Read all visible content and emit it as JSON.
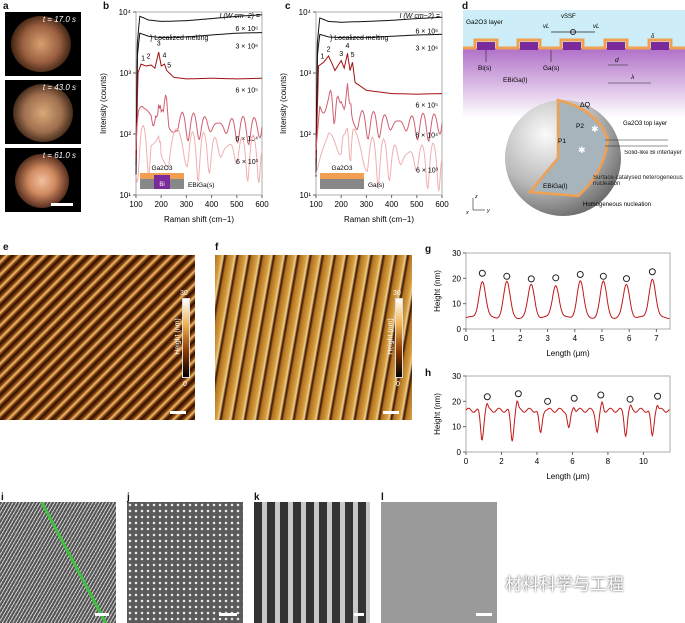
{
  "panels": {
    "a": "a",
    "b": "b",
    "c": "c",
    "d": "d",
    "e": "e",
    "f": "f",
    "g": "g",
    "h": "h",
    "i": "i",
    "j": "j",
    "k": "k",
    "l": "l"
  },
  "panel_a": {
    "times": [
      "t = 17.0 s",
      "t = 43.0 s",
      "t = 61.0 s"
    ]
  },
  "panel_d": {
    "ga2o3_layer": "Ga2O3 layer",
    "v_ssf": "vSSF",
    "v_l_left": "vL",
    "v_l_right": "vL",
    "delta": "δ",
    "bi_s": "Bi(s)",
    "ga_s": "Ga(s)",
    "d": "d",
    "lambda": "λ",
    "ebiga_l": "EBiGa(l)",
    "delta_q": "ΔQ",
    "p1": "P1",
    "p2": "P2",
    "top_layer": "Ga2O3 top layer",
    "interlayer": "Solid-like Bi interlayer",
    "surface_nucleation": "Surface-catalysed heterogeneous nucleation",
    "homogeneous": "Homogeneous nucleation",
    "ebiga_l2": "EBiGa(l)",
    "axis_z": "z",
    "axis_y": "y",
    "axis_x": "x"
  },
  "panel_e": {
    "cbar_max": "30",
    "cbar_min": "0",
    "cbar_label": "Height (nm)"
  },
  "panel_f": {
    "cbar_max": "30",
    "cbar_min": "0",
    "cbar_label": "Height (nm)"
  },
  "watermark": "材料科学与工程",
  "colors": {
    "black_series": "#111111",
    "dark_red": "#a01010",
    "mid_red": "#d05060",
    "light_red": "#eeaaaa",
    "orange": "#f0a050",
    "purple": "#7a2a9a"
  },
  "chart_data": [
    {
      "id": "b",
      "type": "line",
      "xlabel": "Raman shift (cm−1)",
      "ylabel": "Intensity (counts)",
      "xlim": [
        100,
        600
      ],
      "ylim": [
        10,
        10000
      ],
      "yscale": "log",
      "xticks": [
        "100",
        "200",
        "300",
        "400",
        "500",
        "600"
      ],
      "yticks": [
        "10¹",
        "10²",
        "10³",
        "10⁴"
      ],
      "legend_title": "I (W cm−2) =",
      "annotation": "Localized melting",
      "peak_labels": [
        "1",
        "2",
        "3",
        "4",
        "5"
      ],
      "inset": {
        "top": "Ga2O3",
        "middle": "Bi",
        "bottom": "EBiGa(s)"
      },
      "series": [
        {
          "name": "6 × 10⁶",
          "points": [
            [
              100,
              30
            ],
            [
              105,
              3000
            ],
            [
              115,
              8500
            ],
            [
              150,
              7400
            ],
            [
              200,
              7000
            ],
            [
              300,
              7200
            ],
            [
              400,
              7800
            ],
            [
              500,
              8500
            ],
            [
              600,
              9000
            ]
          ]
        },
        {
          "name": "3 × 10⁶",
          "points": [
            [
              100,
              20
            ],
            [
              106,
              2000
            ],
            [
              115,
              4500
            ],
            [
              150,
              4000
            ],
            [
              200,
              3800
            ],
            [
              300,
              3900
            ],
            [
              400,
              4200
            ],
            [
              500,
              4500
            ],
            [
              600,
              4600
            ]
          ]
        },
        {
          "name": "6 × 10⁵",
          "points": [
            [
              100,
              40
            ],
            [
              108,
              1000
            ],
            [
              120,
              1400
            ],
            [
              140,
              1300
            ],
            [
              160,
              1350
            ],
            [
              175,
              1200
            ],
            [
              190,
              2200
            ],
            [
              200,
              1300
            ],
            [
              213,
              1400
            ],
            [
              222,
              1100
            ],
            [
              232,
              1000
            ],
            [
              250,
              850
            ],
            [
              300,
              800
            ],
            [
              400,
              820
            ],
            [
              500,
              800
            ],
            [
              600,
              820
            ]
          ]
        },
        {
          "name": "6 × 10⁴",
          "points": [
            [
              100,
              60
            ],
            [
              110,
              220
            ],
            [
              130,
              280
            ],
            [
              160,
              270
            ],
            [
              178,
              250
            ],
            [
              190,
              500
            ],
            [
              200,
              260
            ],
            [
              213,
              330
            ],
            [
              230,
              250
            ],
            [
              260,
              170
            ],
            [
              300,
              150
            ],
            [
              400,
              140
            ],
            [
              500,
              130
            ],
            [
              600,
              130
            ]
          ]
        },
        {
          "name": "6 × 10³",
          "points": [
            [
              100,
              40
            ],
            [
              120,
              80
            ],
            [
              160,
              75
            ],
            [
              190,
              110
            ],
            [
              200,
              70
            ],
            [
              230,
              80
            ],
            [
              300,
              65
            ],
            [
              400,
              60
            ],
            [
              500,
              55
            ],
            [
              600,
              55
            ]
          ]
        }
      ]
    },
    {
      "id": "c",
      "type": "line",
      "xlabel": "Raman shift (cm−1)",
      "ylabel": "Intensity (counts)",
      "xlim": [
        100,
        600
      ],
      "ylim": [
        10,
        10000
      ],
      "yscale": "log",
      "xticks": [
        "100",
        "200",
        "300",
        "400",
        "500",
        "600"
      ],
      "yticks": [
        "10¹",
        "10²",
        "10³",
        "10⁴"
      ],
      "legend_title": "I (W cm−2) =",
      "annotation": "Localized melting",
      "peak_labels": [
        "1",
        "2",
        "3",
        "4",
        "5"
      ],
      "inset": {
        "top": "Ga2O3",
        "bottom": "Ga(s)"
      },
      "series": [
        {
          "name": "6 × 10⁶",
          "points": [
            [
              100,
              30
            ],
            [
              105,
              3000
            ],
            [
              115,
              8000
            ],
            [
              150,
              7000
            ],
            [
              200,
              6800
            ],
            [
              300,
              7000
            ],
            [
              400,
              7300
            ],
            [
              500,
              7800
            ],
            [
              600,
              8200
            ]
          ]
        },
        {
          "name": "3 × 10⁶",
          "points": [
            [
              100,
              20
            ],
            [
              106,
              2000
            ],
            [
              115,
              4300
            ],
            [
              150,
              3900
            ],
            [
              200,
              3800
            ],
            [
              300,
              3800
            ],
            [
              400,
              4000
            ],
            [
              500,
              4200
            ],
            [
              600,
              4300
            ]
          ]
        },
        {
          "name": "6 × 10⁵",
          "points": [
            [
              100,
              40
            ],
            [
              110,
              1300
            ],
            [
              130,
              1500
            ],
            [
              150,
              1900
            ],
            [
              175,
              1100
            ],
            [
              200,
              1600
            ],
            [
              212,
              1200
            ],
            [
              225,
              2100
            ],
            [
              235,
              1100
            ],
            [
              245,
              1500
            ],
            [
              255,
              700
            ],
            [
              300,
              520
            ],
            [
              400,
              460
            ],
            [
              500,
              450
            ],
            [
              600,
              460
            ]
          ]
        },
        {
          "name": "6 × 10⁴",
          "points": [
            [
              100,
              60
            ],
            [
              115,
              300
            ],
            [
              150,
              420
            ],
            [
              175,
              260
            ],
            [
              200,
              380
            ],
            [
              212,
              280
            ],
            [
              225,
              480
            ],
            [
              235,
              260
            ],
            [
              245,
              330
            ],
            [
              260,
              180
            ],
            [
              300,
              160
            ],
            [
              400,
              150
            ],
            [
              500,
              145
            ],
            [
              600,
              150
            ]
          ]
        },
        {
          "name": "6 × 10³",
          "points": [
            [
              100,
              40
            ],
            [
              130,
              70
            ],
            [
              150,
              90
            ],
            [
              200,
              75
            ],
            [
              225,
              100
            ],
            [
              250,
              70
            ],
            [
              300,
              55
            ],
            [
              400,
              45
            ],
            [
              500,
              42
            ],
            [
              600,
              40
            ]
          ]
        }
      ]
    },
    {
      "id": "g",
      "type": "line",
      "xlabel": "Length (μm)",
      "ylabel": "Height (nm)",
      "xlim": [
        0,
        7.5
      ],
      "ylim": [
        0,
        30
      ],
      "xticks": [
        "0",
        "1",
        "2",
        "3",
        "4",
        "5",
        "6",
        "7"
      ],
      "yticks": [
        "0",
        "10",
        "20",
        "30"
      ],
      "peaks": [
        [
          0.6,
          19
        ],
        [
          1.5,
          18.5
        ],
        [
          2.4,
          17.5
        ],
        [
          3.3,
          17.5
        ],
        [
          4.2,
          19
        ],
        [
          5.05,
          18.5
        ],
        [
          5.9,
          17.5
        ],
        [
          6.85,
          20
        ]
      ],
      "baseline": 4.5,
      "markers": [
        [
          0.6,
          22
        ],
        [
          1.5,
          20.8
        ],
        [
          2.4,
          19.8
        ],
        [
          3.3,
          20.2
        ],
        [
          4.2,
          21.5
        ],
        [
          5.05,
          20.8
        ],
        [
          5.9,
          19.9
        ],
        [
          6.85,
          22.6
        ]
      ]
    },
    {
      "id": "h",
      "type": "line",
      "xlabel": "Length (μm)",
      "ylabel": "Height (nm)",
      "xlim": [
        0,
        11.5
      ],
      "ylim": [
        0,
        30
      ],
      "xticks": [
        "0",
        "2",
        "4",
        "6",
        "8",
        "10"
      ],
      "yticks": [
        "0",
        "10",
        "20",
        "30"
      ],
      "dips": [
        [
          0.9,
          5
        ],
        [
          2.6,
          4.5
        ],
        [
          4.2,
          7
        ],
        [
          5.8,
          9
        ],
        [
          7.4,
          8
        ],
        [
          9.0,
          7
        ],
        [
          10.5,
          6
        ]
      ],
      "baseline": 16.5,
      "markers": [
        [
          1.2,
          21.8
        ],
        [
          2.95,
          23
        ],
        [
          4.6,
          20
        ],
        [
          6.1,
          21.2
        ],
        [
          7.6,
          22.5
        ],
        [
          9.25,
          20.8
        ],
        [
          10.8,
          22
        ]
      ]
    }
  ]
}
